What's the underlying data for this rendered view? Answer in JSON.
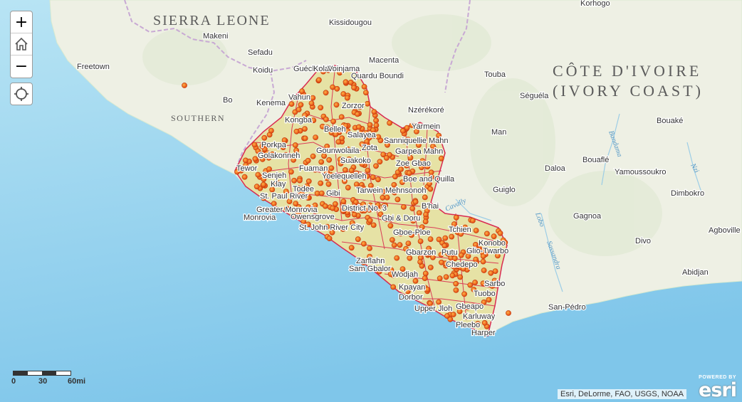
{
  "controls": {
    "zoom_in": "+",
    "zoom_out": "−",
    "home_icon": "home-icon",
    "locate_icon": "locate-icon"
  },
  "map": {
    "country_labels": [
      "SIERRA LEONE",
      "CÔTE D'IVOIRE",
      "(IVORY COAST)"
    ],
    "region_labels": [
      "SOUTHERN"
    ],
    "place_labels": [
      "Kissidougou",
      "Korhogo",
      "Makeni",
      "Sefadu",
      "Koidu",
      "Freetown",
      "Bo",
      "Kenema",
      "Macenta",
      "Guéckédou",
      "Nzérékoré",
      "Touba",
      "Séguéla",
      "Bouaké",
      "Man",
      "Daloa",
      "Bouaflé",
      "Yamoussoukro",
      "Guiglo",
      "Dimbokro",
      "Gagnoa",
      "Divo",
      "Agboville",
      "Abidjan",
      "San-Pédro",
      "Monrovia",
      "Kolahun",
      "Voinjama",
      "Quardu Boundi",
      "Zorzor",
      "Vahun",
      "Kongba",
      "Belleh",
      "Salayea",
      "Sanniquellie Mahn",
      "Yarmein",
      "Zota",
      "Garpea Mahn",
      "Porkpa",
      "Golakonneh",
      "Gounwolaila",
      "Suakoko",
      "Zoe Gbao",
      "Tewor",
      "Fuaman",
      "Boe and Quilla",
      "Senjeh",
      "Klay",
      "Yoelequelleh",
      "Tarwein Mehnsonoh",
      "Todee",
      "St. Paul River",
      "Gibi",
      "Greater Monrovia",
      "District No. 3",
      "B'hai",
      "Owensgrove",
      "St. John River City",
      "Gbi & Doru",
      "Gboe-Ploe",
      "Tchien",
      "Konobo",
      "Gbarzon",
      "Glio-Twarbo",
      "Putu",
      "Zarflahn",
      "Sam Gbalor",
      "Chedepo",
      "Wodjah",
      "Sarbo",
      "Kpayan",
      "Dorbor",
      "Tuobo",
      "Upper Jloh",
      "Gbeapo",
      "Karluway",
      "Pleebo",
      "Harper"
    ],
    "river_labels": [
      "Cavally",
      "Lobo",
      "Sassandra",
      "Bandama",
      "Nzi"
    ],
    "attribution": "Esri, DeLorme, FAO, USGS, NOAA",
    "powered_by": "POWERED BY",
    "esri_logo": "esri",
    "scale": {
      "labels": [
        "0",
        "30",
        "60mi"
      ]
    },
    "colors": {
      "ocean": "#8fd0ee",
      "land": "#eef0e4",
      "liberia_fill": "#e6e2a2",
      "district_border": "#d8204a",
      "marker": "#ee5a19",
      "border": "#c8a9d4"
    }
  }
}
